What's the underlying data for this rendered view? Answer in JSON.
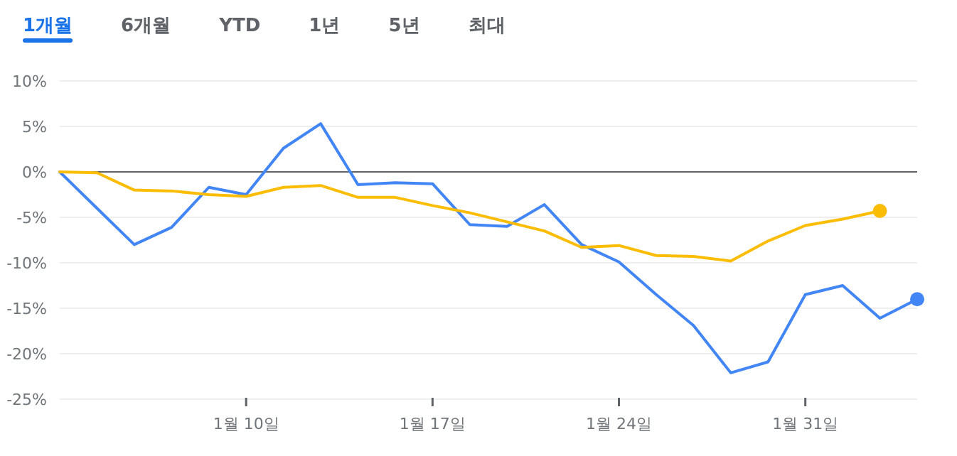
{
  "chart_data": {
    "type": "line",
    "annotations": [
      "1개월",
      "6개월",
      "YTD",
      "1년",
      "5년",
      "최대"
    ],
    "categories": [
      null,
      null,
      null,
      null,
      null,
      "1월 10일",
      null,
      null,
      null,
      null,
      "1월 17일",
      null,
      null,
      null,
      null,
      "1월 24일",
      null,
      null,
      null,
      null,
      "1월 31일",
      null,
      null,
      null
    ],
    "series": [
      {
        "color": "#4285f4",
        "values": [
          0,
          -4.0,
          -8.0,
          -6.1,
          -1.7,
          -2.5,
          2.6,
          5.3,
          -1.4,
          -1.2,
          -1.3,
          -5.8,
          -6.0,
          -3.6,
          -8.0,
          -9.9,
          -13.5,
          -16.9,
          -22.1,
          -20.9,
          -13.5,
          -12.5,
          -16.1,
          -14.0
        ]
      },
      {
        "color": "#fbbc04",
        "values": [
          0,
          -0.1,
          -2.0,
          -2.1,
          -2.5,
          -2.7,
          -1.7,
          -1.5,
          -2.8,
          -2.8,
          -3.7,
          -4.5,
          -5.5,
          -6.5,
          -8.3,
          -8.1,
          -9.2,
          -9.3,
          -9.8,
          -7.6,
          -5.9,
          -5.2,
          -4.3,
          null
        ]
      }
    ],
    "ylim": [
      -25,
      10
    ],
    "yticks": [
      {
        "value": 10,
        "label": "10%"
      },
      {
        "value": 5,
        "label": "5%"
      },
      {
        "value": 0,
        "label": "0%"
      },
      {
        "value": -5,
        "label": "-5%"
      },
      {
        "value": -10,
        "label": "-10%"
      },
      {
        "value": -15,
        "label": "-15%"
      },
      {
        "value": -20,
        "label": "-20%"
      },
      {
        "value": -25,
        "label": "-25%"
      }
    ],
    "ref_lines": [
      {
        "axis": "y",
        "value": 0,
        "color": "#5f6368"
      }
    ],
    "grid": "y"
  }
}
